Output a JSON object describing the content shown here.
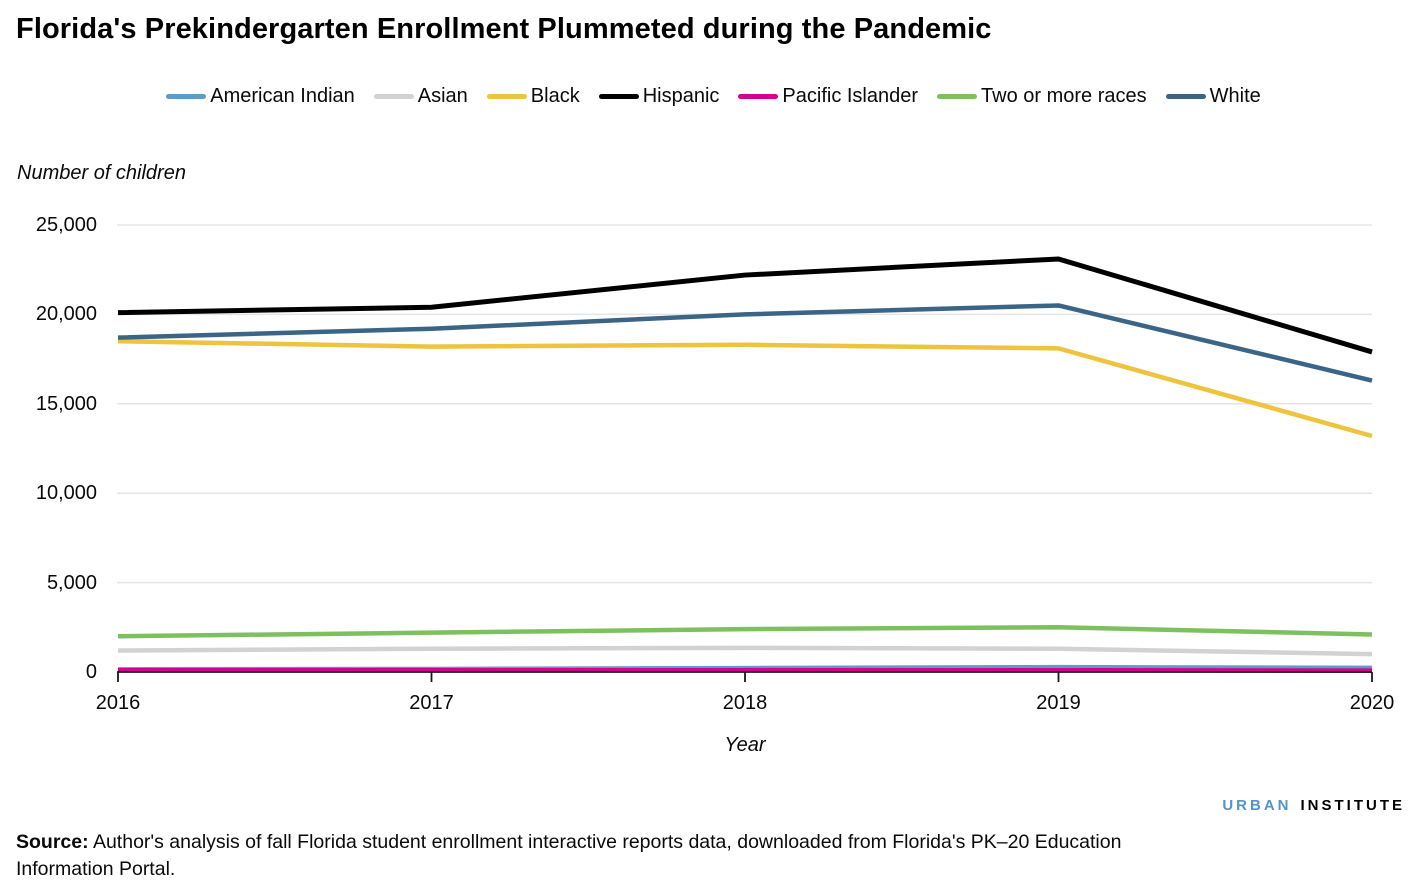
{
  "title": "Florida's Prekindergarten Enrollment Plummeted during the Pandemic",
  "source": {
    "prefix": "Source:",
    "text": " Author's analysis of fall Florida student enrollment interactive reports data, downloaded from Florida's PK–20 Education Information Portal."
  },
  "logo": {
    "part1": "URBAN",
    "part2": "INSTITUTE",
    "part1_color": "#5592c9",
    "part2_color": "#000000"
  },
  "chart_data": {
    "type": "line",
    "title": "Florida's Prekindergarten Enrollment Plummeted during the Pandemic",
    "xlabel": "Year",
    "ylabel": "Number of children",
    "x": [
      2016,
      2017,
      2018,
      2019,
      2020
    ],
    "xtick_labels": [
      "2016",
      "2017",
      "2018",
      "2019",
      "2020"
    ],
    "ylim": [
      0,
      25000
    ],
    "yticks": [
      0,
      5000,
      10000,
      15000,
      20000,
      25000
    ],
    "ytick_labels": [
      "0",
      "5,000",
      "10,000",
      "15,000",
      "20,000",
      "25,000"
    ],
    "grid": "horizontal",
    "legend_position": "top",
    "grid_color": "#e5e5e5",
    "axis_color": "#1a1a1a",
    "series": [
      {
        "name": "American Indian",
        "color": "#5c9ccc",
        "values": [
          150,
          170,
          220,
          270,
          230
        ]
      },
      {
        "name": "Asian",
        "color": "#d2d2d2",
        "values": [
          1200,
          1300,
          1350,
          1300,
          1000
        ]
      },
      {
        "name": "Black",
        "color": "#eec33d",
        "values": [
          18500,
          18200,
          18300,
          18100,
          13200
        ]
      },
      {
        "name": "Hispanic",
        "color": "#000000",
        "values": [
          20100,
          20400,
          22200,
          23100,
          17900
        ]
      },
      {
        "name": "Pacific Islander",
        "color": "#d5008f",
        "values": [
          100,
          100,
          100,
          100,
          80
        ]
      },
      {
        "name": "Two or more races",
        "color": "#7dc15f",
        "values": [
          2000,
          2200,
          2400,
          2500,
          2100
        ]
      },
      {
        "name": "White",
        "color": "#3a6587",
        "values": [
          18700,
          19200,
          20000,
          20500,
          16300
        ]
      }
    ]
  }
}
